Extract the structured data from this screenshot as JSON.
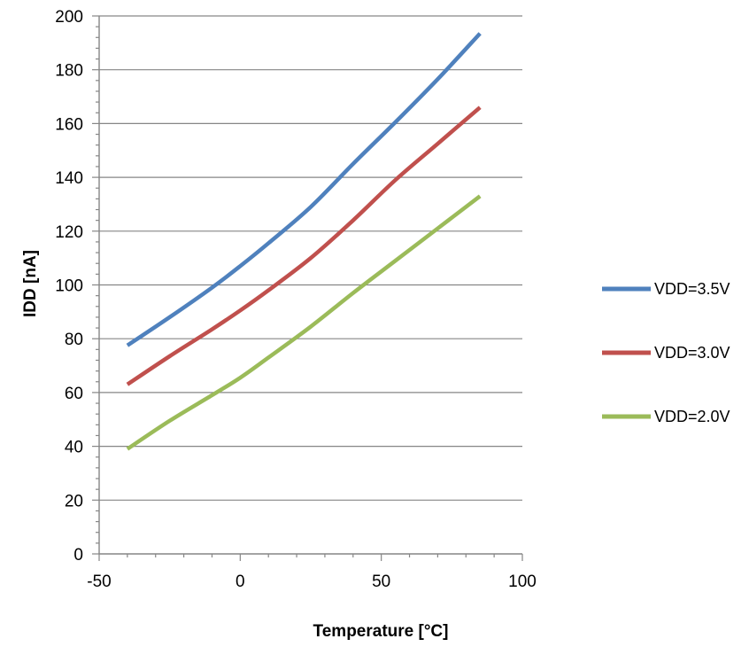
{
  "chart_data": {
    "type": "line",
    "title": "",
    "xlabel": "Temperature [°C]",
    "ylabel": "IDD [nA]",
    "xlim": [
      -50,
      100
    ],
    "ylim": [
      0,
      200
    ],
    "x_ticks": [
      -50,
      0,
      50,
      100
    ],
    "y_ticks": [
      0,
      20,
      40,
      60,
      80,
      100,
      120,
      140,
      160,
      180,
      200
    ],
    "x_minor_step": 10,
    "y_minor_step": 4,
    "grid": {
      "horizontal": true,
      "vertical": false
    },
    "legend_position": "right",
    "series": [
      {
        "name": "VDD=3.5V",
        "color": "#4f81bd",
        "x": [
          -40,
          -25,
          -10,
          0,
          10,
          25,
          40,
          55,
          70,
          85
        ],
        "y": [
          77.5,
          88,
          99,
          107,
          115.5,
          129,
          145,
          160.5,
          176.5,
          193.5
        ]
      },
      {
        "name": "VDD=3.0V",
        "color": "#c0504d",
        "x": [
          -40,
          -25,
          -10,
          0,
          10,
          25,
          40,
          55,
          70,
          85
        ],
        "y": [
          63,
          73.5,
          83.5,
          90.5,
          98,
          110,
          124,
          139,
          152.5,
          166
        ]
      },
      {
        "name": "VDD=2.0V",
        "color": "#9bbb59",
        "x": [
          -40,
          -25,
          -10,
          0,
          10,
          25,
          40,
          55,
          70,
          85
        ],
        "y": [
          39,
          49.5,
          59,
          65.5,
          73,
          84.5,
          97,
          109,
          121,
          133
        ]
      }
    ]
  }
}
